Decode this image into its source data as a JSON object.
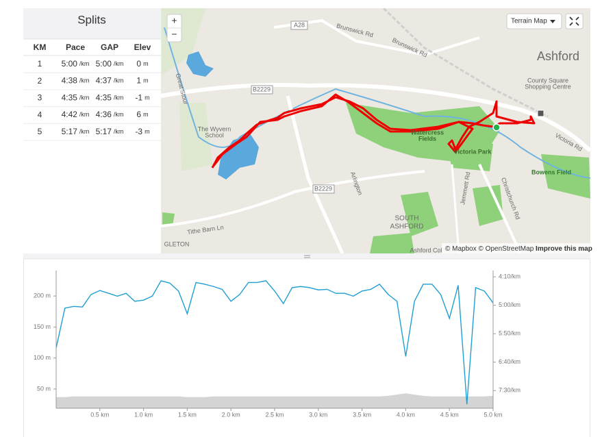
{
  "splits": {
    "title": "Splits",
    "headers": [
      "KM",
      "Pace",
      "GAP",
      "Elev"
    ],
    "pace_unit": "/km",
    "elev_unit": "m",
    "rows": [
      {
        "km": "1",
        "pace": "5:00",
        "gap": "5:00",
        "elev": "0"
      },
      {
        "km": "2",
        "pace": "4:38",
        "gap": "4:37",
        "elev": "1"
      },
      {
        "km": "3",
        "pace": "4:35",
        "gap": "4:35",
        "elev": "-1"
      },
      {
        "km": "4",
        "pace": "4:42",
        "gap": "4:36",
        "elev": "6"
      },
      {
        "km": "5",
        "pace": "5:17",
        "gap": "5:17",
        "elev": "-3"
      }
    ]
  },
  "map": {
    "zoom_in": "+",
    "zoom_out": "−",
    "style_button": "Terrain Map",
    "attribution": [
      "© Mapbox",
      "© OpenStreetMap",
      "Improve this map"
    ],
    "labels": [
      "Ashford",
      "County Square",
      "Shopping Centre",
      "A28",
      "Brunswick Rd",
      "Brunswick Rd",
      "B2229",
      "B2229",
      "The Wyvern",
      "School",
      "Watercress",
      "Fields",
      "Victoria Park",
      "Victoria Rd",
      "Bowens Field",
      "Tithe Barn Ln",
      "Jemmett Rd",
      "Christchurch Rd",
      "Arlington",
      "SOUTH",
      "ASHFORD",
      "Ashford Col",
      "Great Stour",
      "GLETON"
    ]
  },
  "chart_data": {
    "type": "line",
    "x": [
      0,
      0.1,
      0.2,
      0.3,
      0.4,
      0.5,
      0.6,
      0.7,
      0.8,
      0.9,
      1.0,
      1.1,
      1.2,
      1.3,
      1.4,
      1.5,
      1.6,
      1.7,
      1.8,
      1.9,
      2.0,
      2.1,
      2.2,
      2.3,
      2.4,
      2.5,
      2.6,
      2.7,
      2.8,
      2.9,
      3.0,
      3.1,
      3.2,
      3.3,
      3.4,
      3.5,
      3.6,
      3.7,
      3.8,
      3.9,
      4.0,
      4.1,
      4.2,
      4.3,
      4.4,
      4.5,
      4.6,
      4.7,
      4.8,
      4.9,
      5.0
    ],
    "xlim": [
      0,
      5.0
    ],
    "xticks": [
      {
        "value": 0.5,
        "label": "0.5 km"
      },
      {
        "value": 1.0,
        "label": "1.0 km"
      },
      {
        "value": 1.5,
        "label": "1.5 km"
      },
      {
        "value": 2.0,
        "label": "2.0 km"
      },
      {
        "value": 2.5,
        "label": "2.5 km"
      },
      {
        "value": 3.0,
        "label": "3.0 km"
      },
      {
        "value": 3.5,
        "label": "3.5 km"
      },
      {
        "value": 4.0,
        "label": "4.0 km"
      },
      {
        "value": 4.5,
        "label": "4.5 km"
      },
      {
        "value": 5.0,
        "label": "5.0 km"
      }
    ],
    "ylim": [
      19,
      241
    ],
    "yticks": [
      {
        "value": 50,
        "label": "50 m"
      },
      {
        "value": 100,
        "label": "100 m"
      },
      {
        "value": 150,
        "label": "150 m"
      },
      {
        "value": 200,
        "label": "200 m"
      }
    ],
    "y2lim": [
      481,
      239
    ],
    "y2ticks": [
      {
        "value": 250,
        "label": "4:10/km"
      },
      {
        "value": 300,
        "label": "5:00/km"
      },
      {
        "value": 350,
        "label": "5:50/km"
      },
      {
        "value": 400,
        "label": "6:40/km"
      },
      {
        "value": 450,
        "label": "7:30/km"
      }
    ],
    "series": [
      {
        "name": "Elevation",
        "color": "#d4d4d4",
        "values": [
          37,
          37,
          38,
          38,
          38,
          38,
          38,
          38,
          38,
          38,
          38,
          38,
          38,
          38,
          38,
          37,
          37,
          37,
          38,
          38,
          38,
          38,
          38,
          38,
          38,
          38,
          38,
          38,
          38,
          38,
          38,
          38,
          38,
          38,
          38,
          38,
          38,
          38,
          39,
          41,
          43,
          41,
          39,
          38,
          38,
          38,
          38,
          38,
          38,
          38,
          39
        ]
      },
      {
        "name": "Pace",
        "color": "#1f9fd3",
        "axis": "y2",
        "values": [
          375,
          305,
          302,
          303,
          281,
          274,
          279,
          284,
          279,
          293,
          291,
          284,
          257,
          261,
          275,
          315,
          260,
          263,
          267,
          272,
          293,
          281,
          260,
          260,
          257,
          275,
          297,
          269,
          267,
          269,
          273,
          272,
          279,
          279,
          284,
          275,
          272,
          263,
          281,
          293,
          390,
          293,
          263,
          263,
          281,
          323,
          265,
          474,
          269,
          275,
          296
        ]
      }
    ]
  }
}
